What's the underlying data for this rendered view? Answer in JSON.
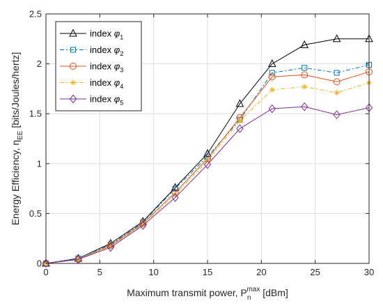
{
  "chart_data": {
    "type": "line",
    "xlabel": "Maximum transmit power, P",
    "xlabel_sub": "n",
    "xlabel_sup": "max",
    "xlabel_tail": " [dBm]",
    "ylabel": "Energy Efficiency, η",
    "ylabel_sub": "EE",
    "ylabel_tail": " [bits/Joules/hertz]",
    "xlim": [
      0,
      30
    ],
    "ylim": [
      0,
      2.5
    ],
    "xticks": [
      "0",
      "5",
      "10",
      "15",
      "20",
      "25",
      "30"
    ],
    "yticks": [
      "0",
      "0.5",
      "1",
      "1.5",
      "2",
      "2.5"
    ],
    "grid": true,
    "legend_position": "top-left",
    "x": [
      0,
      3,
      6,
      9,
      12,
      15,
      18,
      21,
      24,
      27,
      30
    ],
    "series": [
      {
        "name": "index ",
        "sub": "1",
        "color": "#000000",
        "dash": "",
        "marker": "triangle",
        "values": [
          0.0,
          0.05,
          0.2,
          0.42,
          0.76,
          1.1,
          1.6,
          2.0,
          2.19,
          2.25,
          2.25
        ]
      },
      {
        "name": "index ",
        "sub": "2",
        "color": "#0072BD",
        "dash": "6,3,2,3",
        "marker": "square",
        "values": [
          0.0,
          0.05,
          0.19,
          0.41,
          0.75,
          1.07,
          1.44,
          1.91,
          1.96,
          1.91,
          1.99
        ]
      },
      {
        "name": "index ",
        "sub": "3",
        "color": "#D95319",
        "dash": "",
        "marker": "circle",
        "values": [
          0.0,
          0.04,
          0.18,
          0.4,
          0.71,
          1.05,
          1.46,
          1.87,
          1.89,
          1.82,
          1.92
        ]
      },
      {
        "name": "index ",
        "sub": "4",
        "color": "#EDB120",
        "dash": "6,3,2,3",
        "marker": "asterisk",
        "values": [
          0.0,
          0.04,
          0.17,
          0.39,
          0.69,
          1.03,
          1.43,
          1.74,
          1.77,
          1.71,
          1.81
        ]
      },
      {
        "name": "index ",
        "sub": "5",
        "color": "#7E2F8E",
        "dash": "",
        "marker": "diamond",
        "values": [
          0.0,
          0.04,
          0.16,
          0.38,
          0.66,
          0.99,
          1.35,
          1.55,
          1.57,
          1.49,
          1.56
        ]
      }
    ]
  }
}
